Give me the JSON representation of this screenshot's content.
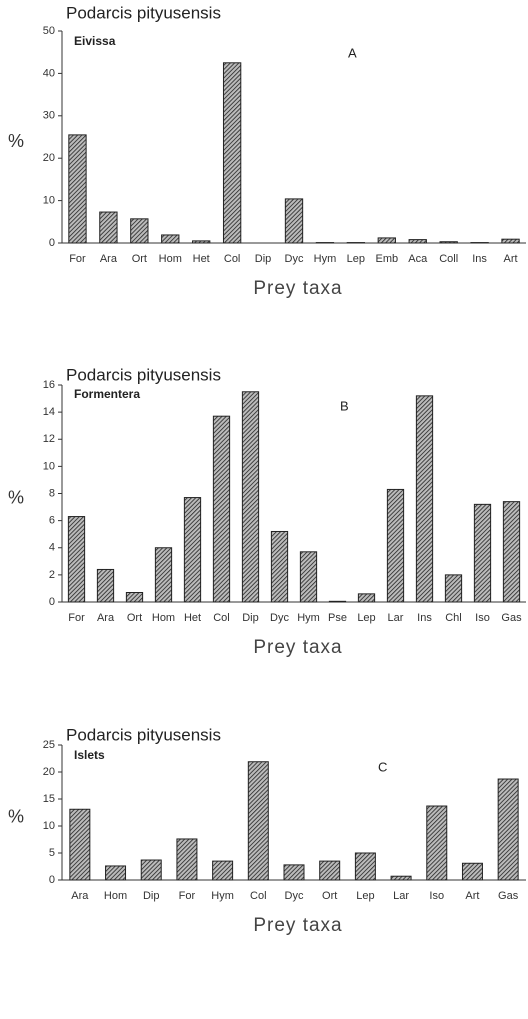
{
  "chart_data": [
    {
      "type": "bar",
      "title": "Podarcis pityusensis",
      "subtitle": "Eivissa",
      "panel_label": "A",
      "ylabel": "%",
      "xlabel": "Prey taxa",
      "categories": [
        "For",
        "Ara",
        "Ort",
        "Hom",
        "Het",
        "Col",
        "Dip",
        "Dyc",
        "Hym",
        "Lep",
        "Emb",
        "Aca",
        "Coll",
        "Ins",
        "Art"
      ],
      "values": [
        25.5,
        7.3,
        5.7,
        1.9,
        0.5,
        42.5,
        0,
        10.4,
        0.1,
        0.1,
        1.2,
        0.8,
        0.3,
        0.1,
        0.9
      ],
      "ylim": [
        0,
        50
      ],
      "yticks": [
        0,
        10,
        20,
        30,
        40,
        50
      ]
    },
    {
      "type": "bar",
      "title": "Podarcis pityusensis",
      "subtitle": "Formentera",
      "panel_label": "B",
      "ylabel": "%",
      "xlabel": "Prey taxa",
      "categories": [
        "For",
        "Ara",
        "Ort",
        "Hom",
        "Het",
        "Col",
        "Dip",
        "Dyc",
        "Hym",
        "Pse",
        "Lep",
        "Lar",
        "Ins",
        "Chl",
        "Iso",
        "Gas"
      ],
      "values": [
        6.3,
        2.4,
        0.7,
        4.0,
        7.7,
        13.7,
        15.5,
        5.2,
        3.7,
        0.05,
        0.6,
        8.3,
        15.2,
        2.0,
        7.2,
        7.4
      ],
      "ylim": [
        0,
        16
      ],
      "yticks": [
        0,
        2,
        4,
        6,
        8,
        10,
        12,
        14,
        16
      ]
    },
    {
      "type": "bar",
      "title": "Podarcis pityusensis",
      "subtitle": "Islets",
      "panel_label": "C",
      "ylabel": "%",
      "xlabel": "Prey taxa",
      "categories": [
        "Ara",
        "Hom",
        "Dip",
        "For",
        "Hym",
        "Col",
        "Dyc",
        "Ort",
        "Lep",
        "Lar",
        "Iso",
        "Art",
        "Gas"
      ],
      "values": [
        13.1,
        2.6,
        3.7,
        7.6,
        3.5,
        21.9,
        2.8,
        3.5,
        5.0,
        0.7,
        13.7,
        3.1,
        18.7
      ],
      "ylim": [
        0,
        25
      ],
      "yticks": [
        0,
        5,
        10,
        15,
        20,
        25
      ]
    }
  ]
}
